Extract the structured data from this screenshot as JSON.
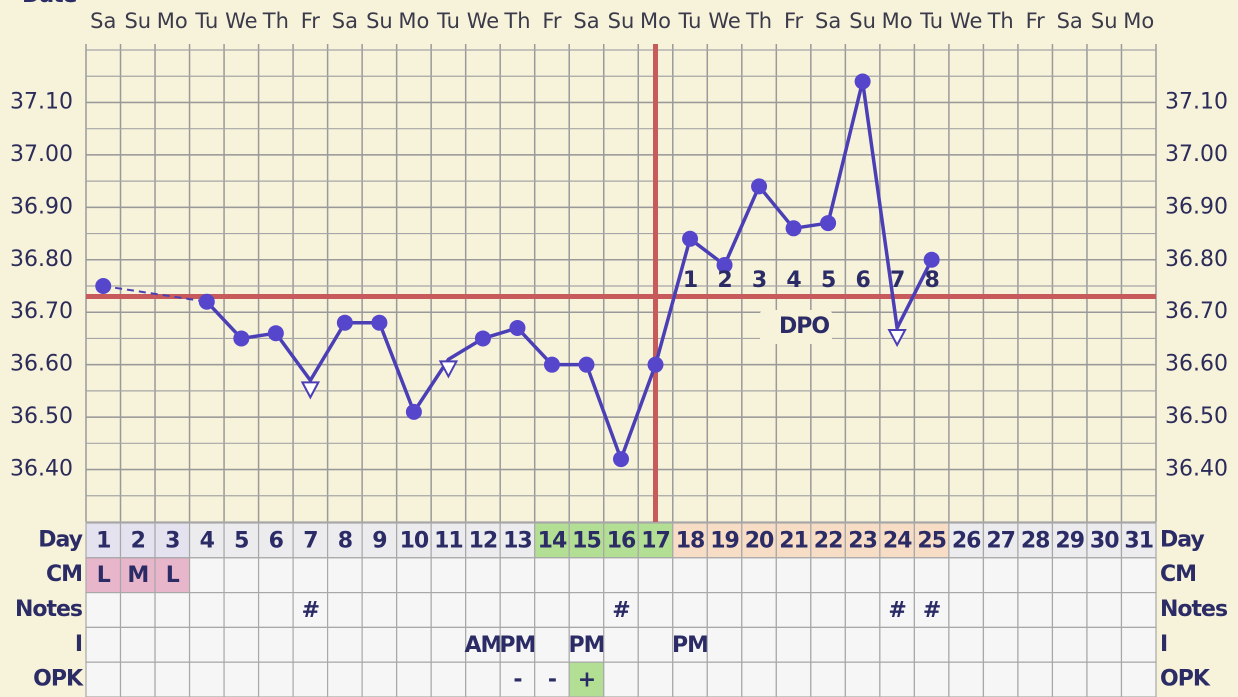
{
  "chart_data": {
    "type": "line",
    "title": "Date",
    "weekdays": [
      "Sa",
      "Su",
      "Mo",
      "Tu",
      "We",
      "Th",
      "Fr",
      "Sa",
      "Su",
      "Mo",
      "Tu",
      "We",
      "Th",
      "Fr",
      "Sa",
      "Su",
      "Mo",
      "Tu",
      "We",
      "Th",
      "Fr",
      "Sa",
      "Su",
      "Mo",
      "Tu",
      "We",
      "Th",
      "Fr",
      "Sa",
      "Su",
      "Mo"
    ],
    "x": [
      1,
      2,
      3,
      4,
      5,
      6,
      7,
      8,
      9,
      10,
      11,
      12,
      13,
      14,
      15,
      16,
      17,
      18,
      19,
      20,
      21,
      22,
      23,
      24,
      25,
      26,
      27,
      28,
      29,
      30,
      31
    ],
    "xlim": [
      0.5,
      31.5
    ],
    "values": [
      36.75,
      null,
      null,
      36.72,
      36.65,
      36.66,
      36.57,
      36.68,
      36.68,
      36.51,
      36.61,
      36.65,
      36.67,
      36.6,
      36.6,
      36.42,
      36.6,
      36.84,
      36.79,
      36.94,
      36.86,
      36.87,
      37.14,
      36.67,
      36.8,
      null,
      null,
      null,
      null,
      null,
      null
    ],
    "markers": [
      "circle",
      null,
      null,
      "circle",
      "circle",
      "circle",
      "triangle",
      "circle",
      "circle",
      "circle",
      "triangle",
      "circle",
      "circle",
      "circle",
      "circle",
      "circle",
      "circle",
      "circle",
      "circle",
      "circle",
      "circle",
      "circle",
      "circle",
      "triangle",
      "circle",
      null,
      null,
      null,
      null,
      null,
      null
    ],
    "color": "#4b3fb6",
    "marker_color": "#5646cc",
    "ylim": [
      36.3,
      37.2
    ],
    "yticks": [
      {
        "value": 36.4,
        "label": "36.40"
      },
      {
        "value": 36.5,
        "label": "36.50"
      },
      {
        "value": 36.6,
        "label": "36.60"
      },
      {
        "value": 36.7,
        "label": "36.70"
      },
      {
        "value": 36.8,
        "label": "36.80"
      },
      {
        "value": 36.9,
        "label": "36.90"
      },
      {
        "value": 37.0,
        "label": "37.00"
      },
      {
        "value": 37.1,
        "label": "37.10"
      }
    ],
    "coverline": 36.73,
    "ovulation_day": 17,
    "reference_color": "#c75a5a",
    "dpo_label": "DPO",
    "dpo": [
      null,
      null,
      null,
      null,
      null,
      null,
      null,
      null,
      null,
      null,
      null,
      null,
      null,
      null,
      null,
      null,
      null,
      1,
      2,
      3,
      4,
      5,
      6,
      7,
      8,
      null,
      null,
      null,
      null,
      null,
      null
    ],
    "table": {
      "row_labels": [
        "Day",
        "CM",
        "Notes",
        "I",
        "OPK"
      ],
      "day_colors": [
        "#e4e2ee",
        "#e4e2ee",
        "#e4e2ee",
        "#ececef",
        "#ececef",
        "#ececef",
        "#ececef",
        "#ececef",
        "#ececef",
        "#ececef",
        "#ececef",
        "#ececef",
        "#ececef",
        "#b3df94",
        "#b3df94",
        "#b3df94",
        "#b3df94",
        "#f7dcc6",
        "#f7dcc6",
        "#f7dcc6",
        "#f7dcc6",
        "#f7dcc6",
        "#f7dcc6",
        "#f7dcc6",
        "#f7dcc6",
        "#ececef",
        "#ececef",
        "#ececef",
        "#ececef",
        "#ececef",
        "#ececef"
      ],
      "cm": [
        "L",
        "M",
        "L",
        null,
        null,
        null,
        null,
        null,
        null,
        null,
        null,
        null,
        null,
        null,
        null,
        null,
        null,
        null,
        null,
        null,
        null,
        null,
        null,
        null,
        null,
        null,
        null,
        null,
        null,
        null,
        null
      ],
      "cm_color": "#e8b6cb",
      "notes": [
        null,
        null,
        null,
        null,
        null,
        null,
        "#",
        null,
        null,
        null,
        null,
        null,
        null,
        null,
        null,
        "#",
        null,
        null,
        null,
        null,
        null,
        null,
        null,
        "#",
        "#",
        null,
        null,
        null,
        null,
        null,
        null
      ],
      "i": [
        null,
        null,
        null,
        null,
        null,
        null,
        null,
        null,
        null,
        null,
        null,
        "AM",
        "PM",
        null,
        "PM",
        null,
        null,
        "PM",
        null,
        null,
        null,
        null,
        null,
        null,
        null,
        null,
        null,
        null,
        null,
        null,
        null
      ],
      "opk": [
        null,
        null,
        null,
        null,
        null,
        null,
        null,
        null,
        null,
        null,
        null,
        null,
        "-",
        "-",
        "+",
        null,
        null,
        null,
        null,
        null,
        null,
        null,
        null,
        null,
        null,
        null,
        null,
        null,
        null,
        null,
        null
      ],
      "opk_positive": "+",
      "opk_color": "#b3df94"
    }
  }
}
